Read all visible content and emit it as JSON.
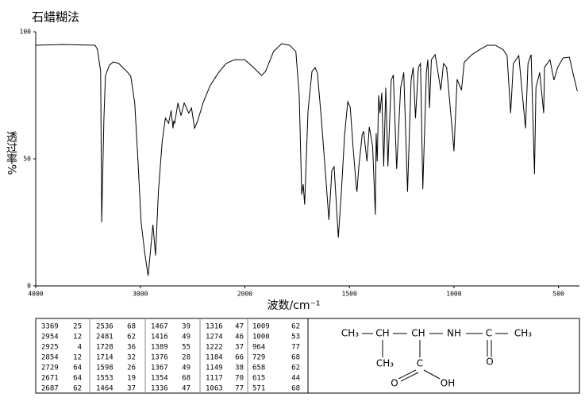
{
  "chart_data": {
    "type": "line",
    "title": "石蜡糊法",
    "x_label": "波数/cm⁻¹",
    "y_label": "透过率%",
    "x_scale": "piecewise-linear",
    "color": "#000000",
    "xlim": [
      4000,
      400
    ],
    "xticks": [
      4000,
      3000,
      2000,
      1500,
      1000,
      500
    ],
    "ylim": [
      0,
      100
    ],
    "yticks": [
      0,
      50,
      100
    ],
    "x": [
      4000,
      3735,
      3432,
      3409,
      3379,
      3369,
      3348,
      3333,
      3295,
      3258,
      3205,
      3167,
      3129,
      3091,
      3053,
      3023,
      2992,
      2954,
      2925,
      2879,
      2854,
      2826,
      2790,
      2760,
      2729,
      2705,
      2687,
      2680,
      2671,
      2640,
      2610,
      2580,
      2536,
      2510,
      2481,
      2450,
      2400,
      2330,
      2250,
      2180,
      2100,
      2050,
      2000,
      1958,
      1920,
      1901,
      1863,
      1824,
      1786,
      1756,
      1740,
      1728,
      1721,
      1714,
      1698,
      1679,
      1664,
      1653,
      1634,
      1614,
      1598,
      1584,
      1573,
      1553,
      1538,
      1523,
      1508,
      1496,
      1481,
      1467,
      1464,
      1455,
      1439,
      1432,
      1416,
      1405,
      1389,
      1376,
      1372,
      1367,
      1360,
      1354,
      1345,
      1336,
      1326,
      1316,
      1300,
      1290,
      1274,
      1255,
      1240,
      1222,
      1205,
      1195,
      1184,
      1170,
      1160,
      1149,
      1132,
      1125,
      1117,
      1108,
      1090,
      1063,
      1050,
      1035,
      1009,
      1000,
      985,
      964,
      951,
      914,
      877,
      840,
      802,
      765,
      746,
      729,
      716,
      690,
      658,
      646,
      631,
      615,
      608,
      590,
      571,
      567,
      541,
      522,
      504,
      478,
      448,
      429,
      410
    ],
    "values": [
      94.7,
      95,
      94.7,
      93,
      84.4,
      25,
      65.6,
      82.8,
      86.9,
      88.1,
      87.5,
      85.9,
      84.4,
      82.5,
      71.9,
      50,
      25,
      12,
      4,
      24.1,
      12,
      37.5,
      57,
      66,
      64,
      69,
      62,
      65,
      64,
      72,
      67,
      72,
      68,
      70,
      62,
      65,
      72,
      79,
      84,
      87.5,
      89,
      89,
      89,
      85.9,
      82.8,
      84.4,
      92.2,
      95.3,
      94.7,
      92.2,
      75,
      36,
      40,
      32,
      68.8,
      84.4,
      85.9,
      83.8,
      65.6,
      43.8,
      26,
      45.3,
      46.9,
      19,
      37.5,
      59.4,
      72.5,
      70.3,
      53,
      39,
      37,
      46.9,
      59.4,
      60.9,
      49,
      62.5,
      55,
      28,
      60,
      49,
      75,
      68,
      76,
      47,
      78,
      47,
      81,
      83,
      46,
      78,
      84,
      37,
      81,
      86,
      66,
      86,
      87.5,
      38,
      84,
      89,
      70,
      89,
      91,
      77,
      87.5,
      86,
      62,
      53,
      81.3,
      77,
      88,
      91,
      93,
      94.7,
      94.7,
      93,
      90.6,
      68,
      87.5,
      90.6,
      62,
      87.5,
      91,
      44,
      78,
      84,
      68,
      86,
      89,
      81,
      86,
      89.7,
      90,
      83,
      76.6
    ]
  },
  "peak_table": {
    "rows": [
      [
        3369,
        25,
        2536,
        68,
        1467,
        39,
        1316,
        47,
        1009,
        62
      ],
      [
        2954,
        12,
        2481,
        62,
        1416,
        49,
        1274,
        46,
        1000,
        53
      ],
      [
        2925,
        4,
        1728,
        36,
        1389,
        55,
        1222,
        37,
        964,
        77
      ],
      [
        2854,
        12,
        1714,
        32,
        1376,
        28,
        1184,
        66,
        729,
        68
      ],
      [
        2729,
        64,
        1598,
        26,
        1367,
        49,
        1149,
        38,
        658,
        62
      ],
      [
        2671,
        64,
        1553,
        19,
        1354,
        68,
        1117,
        70,
        615,
        44
      ],
      [
        2687,
        62,
        1464,
        37,
        1336,
        47,
        1063,
        77,
        571,
        68
      ]
    ]
  },
  "structure": {
    "atoms": [
      "CH₃",
      "CH",
      "CH",
      "NH",
      "C",
      "CH₃",
      "CH₃",
      "O",
      "C",
      "O",
      "OH"
    ]
  }
}
